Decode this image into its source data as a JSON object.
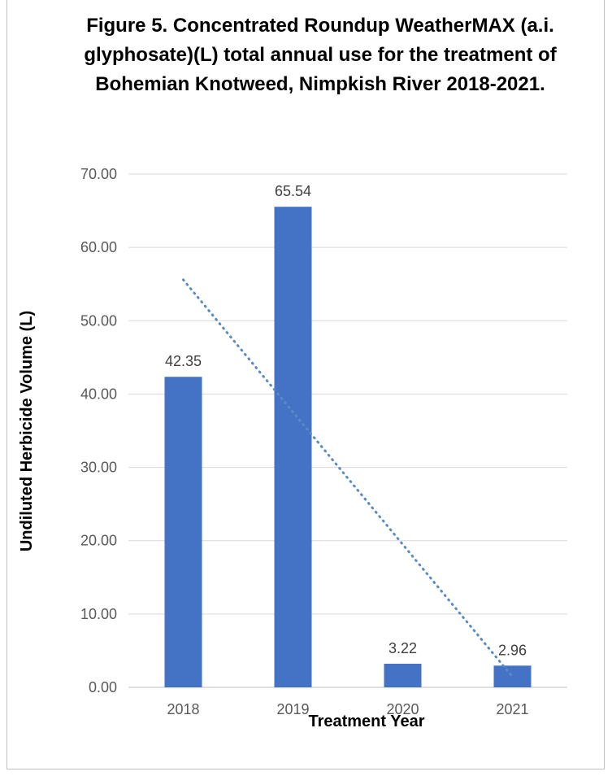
{
  "chart_data": {
    "type": "bar",
    "title": "Figure 5. Concentrated Roundup WeatherMAX (a.i. glyphosate)(L) total annual use for the treatment of Bohemian Knotweed, Nimpkish River 2018-2021.",
    "xlabel": "Treatment Year",
    "ylabel": "Undiluted Herbicide Volume (L)",
    "categories": [
      "2018",
      "2019",
      "2020",
      "2021"
    ],
    "values": [
      42.35,
      65.54,
      3.22,
      2.96
    ],
    "data_labels": [
      "42.35",
      "65.54",
      "3.22",
      "2.96"
    ],
    "ylim": [
      0,
      70
    ],
    "yticks": [
      0,
      10,
      20,
      30,
      40,
      50,
      60,
      70
    ],
    "ytick_labels": [
      "0.00",
      "10.00",
      "20.00",
      "30.00",
      "40.00",
      "50.00",
      "60.00",
      "70.00"
    ],
    "grid": true,
    "trendline": {
      "type": "linear",
      "style": "dotted"
    },
    "legend": "none",
    "colors": {
      "bar": "#4472C4",
      "trendline": "#5B8CC0",
      "grid": "#D9D9D9"
    }
  }
}
